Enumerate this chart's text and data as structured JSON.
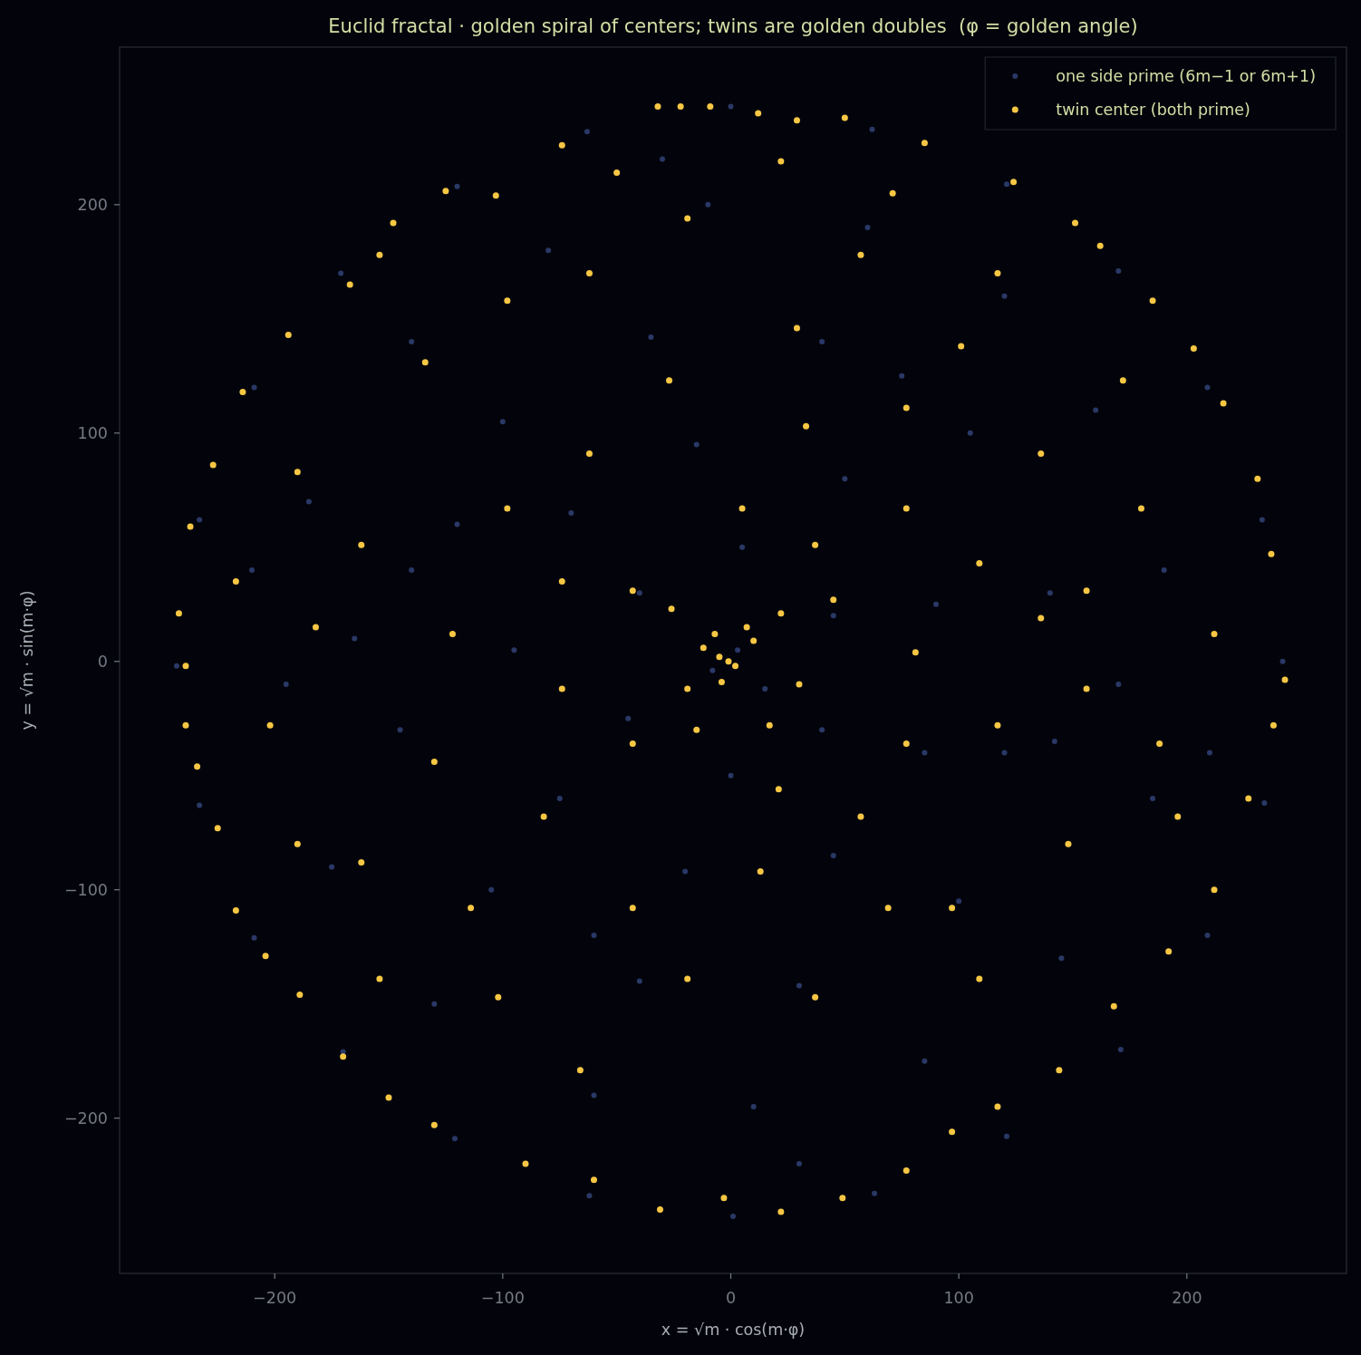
{
  "chart_data": {
    "type": "scatter",
    "title": "Euclid fractal · golden spiral of centers; twins are golden doubles  (φ = golden angle)",
    "xlabel": "x = √m · cos(m·φ)",
    "ylabel": "y = √m · sin(m·φ)",
    "xlim": [
      -268,
      270
    ],
    "ylim": [
      -268,
      269
    ],
    "xticks": [
      {
        "value": -200,
        "label": "−200"
      },
      {
        "value": -100,
        "label": "−100"
      },
      0,
      100,
      200
    ],
    "yticks": [
      {
        "value": -200,
        "label": "−200"
      },
      {
        "value": -100,
        "label": "−100"
      },
      0,
      100,
      200
    ],
    "grid": false,
    "legend": "top right",
    "marker": "circle",
    "series": [
      {
        "name": "one side prime (6m−1 or 6m+1)",
        "color": "#2a3866",
        "x": [
          242,
          233,
          209,
          170,
          121,
          62,
          0,
          -63,
          -120,
          -171,
          -209,
          -233,
          -243,
          -233,
          -209,
          -170,
          -121,
          -62,
          1,
          63,
          121,
          171,
          209,
          234,
          190,
          160,
          120,
          60,
          -10,
          -80,
          -140,
          -185,
          -195,
          -175,
          -130,
          -60,
          10,
          85,
          145,
          185,
          140,
          105,
          40,
          -35,
          -100,
          -140,
          -145,
          -105,
          -40,
          30,
          100,
          142,
          90,
          50,
          -15,
          -70,
          -95,
          -75,
          -20,
          45,
          85,
          45,
          5,
          -40,
          -45,
          0,
          40,
          3,
          -8,
          15,
          170,
          -165,
          75,
          -60,
          120,
          -120,
          210,
          -30,
          30,
          -210
        ],
        "values": [
          0,
          62,
          120,
          171,
          209,
          233,
          243,
          232,
          208,
          170,
          120,
          62,
          -2,
          -63,
          -121,
          -171,
          -209,
          -234,
          -243,
          -233,
          -208,
          -170,
          -120,
          -62,
          40,
          110,
          160,
          190,
          200,
          180,
          140,
          70,
          -10,
          -90,
          -150,
          -190,
          -195,
          -175,
          -130,
          -60,
          30,
          100,
          140,
          142,
          105,
          40,
          -30,
          -100,
          -140,
          -142,
          -105,
          -35,
          25,
          80,
          95,
          65,
          5,
          -60,
          -92,
          -85,
          -40,
          20,
          50,
          30,
          -25,
          -50,
          -30,
          5,
          -4,
          -12,
          -10,
          10,
          125,
          -120,
          -40,
          60,
          -40,
          220,
          -220,
          40
        ]
      },
      {
        "name": "twin center (both prime)",
        "color": "#f7c744",
        "x": [
          -32,
          -22,
          -9,
          12,
          29,
          50,
          85,
          124,
          71,
          22,
          -50,
          -74,
          -103,
          -125,
          -148,
          -167,
          -194,
          -214,
          -227,
          -237,
          -242,
          -239,
          -239,
          -234,
          -225,
          -217,
          -204,
          -189,
          -170,
          -150,
          -130,
          -90,
          -60,
          -31,
          -3,
          22,
          49,
          77,
          97,
          117,
          144,
          168,
          192,
          212,
          227,
          238,
          243,
          237,
          231,
          216,
          203,
          185,
          162,
          151,
          -1,
          -5,
          2,
          -7,
          7,
          -19,
          17,
          -43,
          37,
          -62,
          77,
          -82,
          57,
          -43,
          117,
          -122,
          156,
          -162,
          -202,
          -102,
          37,
          97,
          196,
          136,
          -62,
          57,
          -162,
          -134,
          -98,
          -27,
          33,
          101,
          172,
          180,
          136,
          81,
          45,
          -43,
          -74,
          -130,
          -182,
          -217,
          -190,
          -98,
          -19,
          29,
          77,
          109,
          156,
          212,
          188,
          148,
          109,
          69,
          13,
          -19,
          -66,
          -114,
          -154,
          -190,
          77,
          21,
          -74,
          5,
          117,
          -154,
          -12,
          10,
          -4,
          22,
          -26,
          30,
          -15
        ],
        "values": [
          243,
          243,
          243,
          240,
          237,
          238,
          227,
          210,
          205,
          219,
          214,
          226,
          204,
          206,
          192,
          165,
          143,
          118,
          86,
          59,
          21,
          -2,
          -28,
          -46,
          -73,
          -109,
          -129,
          -146,
          -173,
          -191,
          -203,
          -220,
          -227,
          -240,
          -235,
          -241,
          -235,
          -223,
          -206,
          -195,
          -179,
          -151,
          -127,
          -100,
          -60,
          -28,
          -8,
          47,
          80,
          113,
          137,
          158,
          182,
          192,
          0,
          2,
          -2,
          12,
          15,
          -12,
          -28,
          31,
          51,
          91,
          111,
          -68,
          -68,
          -108,
          -28,
          12,
          31,
          51,
          -28,
          -147,
          -147,
          -108,
          -68,
          91,
          170,
          178,
          -88,
          131,
          67,
          123,
          103,
          138,
          123,
          67,
          19,
          4,
          27,
          -36,
          -12,
          -44,
          15,
          35,
          83,
          158,
          194,
          146,
          67,
          43,
          -12,
          12,
          -36,
          -80,
          -139,
          -108,
          -92,
          -139,
          -179,
          -108,
          -139,
          -80,
          -36,
          -56,
          35,
          67,
          170,
          178,
          6,
          9,
          -9,
          21,
          23,
          -10,
          -30
        ]
      }
    ]
  }
}
